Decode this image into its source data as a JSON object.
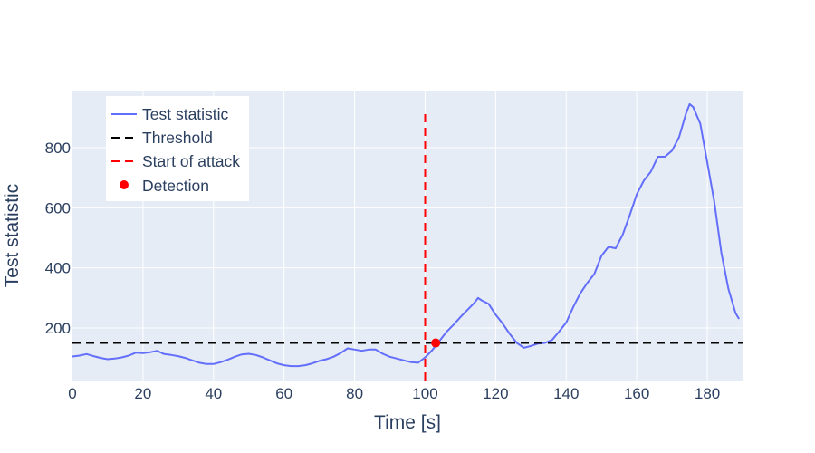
{
  "chart_data": {
    "type": "line",
    "title": "",
    "xlabel": "Time [s]",
    "ylabel": "Test statistic",
    "xlim": [
      0,
      190
    ],
    "ylim": [
      25,
      990
    ],
    "x_ticks": [
      0,
      20,
      40,
      60,
      80,
      100,
      120,
      140,
      160,
      180
    ],
    "y_ticks": [
      200,
      400,
      600,
      800
    ],
    "grid": true,
    "legend_position": "top-left",
    "colors": {
      "test_statistic": "#636efa",
      "threshold": "#000000",
      "start_of_attack": "#ff0000",
      "detection": "#ff0000",
      "plot_bg": "#e5ecf6",
      "grid": "#ffffff",
      "text": "#2a3f5f"
    },
    "series": [
      {
        "name": "Test statistic",
        "style": "solid",
        "points": [
          [
            0,
            105
          ],
          [
            2,
            108
          ],
          [
            4,
            113
          ],
          [
            6,
            106
          ],
          [
            8,
            100
          ],
          [
            10,
            96
          ],
          [
            12,
            98
          ],
          [
            14,
            102
          ],
          [
            16,
            108
          ],
          [
            18,
            118
          ],
          [
            20,
            116
          ],
          [
            22,
            119
          ],
          [
            24,
            124
          ],
          [
            26,
            113
          ],
          [
            28,
            110
          ],
          [
            30,
            106
          ],
          [
            32,
            100
          ],
          [
            34,
            92
          ],
          [
            36,
            84
          ],
          [
            38,
            80
          ],
          [
            40,
            80
          ],
          [
            42,
            86
          ],
          [
            44,
            94
          ],
          [
            46,
            104
          ],
          [
            48,
            112
          ],
          [
            50,
            114
          ],
          [
            52,
            110
          ],
          [
            54,
            102
          ],
          [
            56,
            92
          ],
          [
            58,
            82
          ],
          [
            60,
            76
          ],
          [
            62,
            73
          ],
          [
            64,
            73
          ],
          [
            66,
            76
          ],
          [
            68,
            82
          ],
          [
            70,
            90
          ],
          [
            72,
            96
          ],
          [
            74,
            104
          ],
          [
            76,
            116
          ],
          [
            78,
            132
          ],
          [
            80,
            128
          ],
          [
            82,
            124
          ],
          [
            84,
            128
          ],
          [
            86,
            128
          ],
          [
            88,
            114
          ],
          [
            90,
            104
          ],
          [
            92,
            98
          ],
          [
            94,
            92
          ],
          [
            96,
            86
          ],
          [
            98,
            84
          ],
          [
            100,
            102
          ],
          [
            102,
            126
          ],
          [
            104,
            156
          ],
          [
            106,
            186
          ],
          [
            108,
            210
          ],
          [
            110,
            236
          ],
          [
            112,
            260
          ],
          [
            114,
            284
          ],
          [
            115,
            300
          ],
          [
            116,
            292
          ],
          [
            118,
            280
          ],
          [
            120,
            244
          ],
          [
            122,
            214
          ],
          [
            124,
            180
          ],
          [
            126,
            150
          ],
          [
            128,
            134
          ],
          [
            130,
            140
          ],
          [
            132,
            148
          ],
          [
            134,
            150
          ],
          [
            136,
            160
          ],
          [
            138,
            188
          ],
          [
            140,
            218
          ],
          [
            142,
            270
          ],
          [
            144,
            315
          ],
          [
            146,
            350
          ],
          [
            148,
            380
          ],
          [
            150,
            440
          ],
          [
            152,
            470
          ],
          [
            154,
            465
          ],
          [
            156,
            510
          ],
          [
            158,
            575
          ],
          [
            160,
            645
          ],
          [
            162,
            690
          ],
          [
            164,
            720
          ],
          [
            166,
            770
          ],
          [
            168,
            770
          ],
          [
            170,
            790
          ],
          [
            172,
            835
          ],
          [
            174,
            915
          ],
          [
            175,
            945
          ],
          [
            176,
            935
          ],
          [
            178,
            880
          ],
          [
            180,
            750
          ],
          [
            182,
            620
          ],
          [
            184,
            450
          ],
          [
            186,
            330
          ],
          [
            188,
            250
          ],
          [
            189,
            230
          ]
        ]
      },
      {
        "name": "Threshold",
        "style": "dash",
        "points": [
          [
            0,
            150
          ],
          [
            190,
            150
          ]
        ]
      },
      {
        "name": "Start of attack",
        "style": "dash",
        "points": [
          [
            100,
            25
          ],
          [
            100,
            925
          ]
        ]
      },
      {
        "name": "Detection",
        "style": "marker",
        "points": [
          [
            103,
            150
          ]
        ]
      }
    ]
  }
}
